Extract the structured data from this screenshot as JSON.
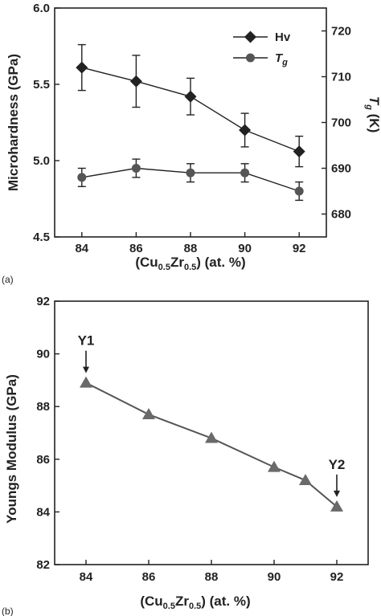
{
  "chart_data": [
    {
      "panel": "(a)",
      "type": "line",
      "x": [
        84,
        86,
        88,
        90,
        92
      ],
      "xlabel_parts": [
        "(Cu",
        "0.5",
        "Zr",
        "0.5",
        ") (at. %)"
      ],
      "ylabel": "Microhardness (GPa)",
      "ylim": [
        4.5,
        6.0
      ],
      "yticks": [
        "4.5",
        "5.0",
        "5.5",
        "6.0"
      ],
      "y2label": "T",
      "y2label_sub": "g",
      "y2label_unit": " (K)",
      "y2lim": [
        675,
        725
      ],
      "y2ticks": [
        "680",
        "690",
        "700",
        "710",
        "720"
      ],
      "xticks": [
        "84",
        "86",
        "88",
        "90",
        "92"
      ],
      "series": [
        {
          "name": "Hv",
          "axis": "left",
          "marker": "diamond",
          "values": [
            5.61,
            5.52,
            5.42,
            5.2,
            5.06
          ],
          "errors": [
            0.15,
            0.17,
            0.12,
            0.11,
            0.1
          ]
        },
        {
          "name": "T",
          "name_sub": "g",
          "axis": "right",
          "marker": "circle",
          "values": [
            688,
            690,
            689,
            689,
            685
          ],
          "errors": [
            2,
            2,
            2,
            2,
            2
          ]
        }
      ],
      "legend_position": "top-right",
      "grid": false
    },
    {
      "panel": "(b)",
      "type": "line",
      "x": [
        84,
        86,
        88,
        90,
        91,
        92
      ],
      "values": [
        88.9,
        87.7,
        86.8,
        85.7,
        85.2,
        84.2
      ],
      "marker": "triangle",
      "xlabel_parts": [
        "(Cu",
        "0.5",
        "Zr",
        "0.5",
        ") (at. %)"
      ],
      "ylabel": "Youngs Modulus (GPa)",
      "ylim": [
        82,
        92
      ],
      "yticks": [
        "82",
        "84",
        "86",
        "88",
        "90",
        "92"
      ],
      "xticks": [
        "84",
        "86",
        "88",
        "90",
        "92"
      ],
      "annotations": [
        {
          "text": "Y1",
          "x": 84,
          "y": 88.9
        },
        {
          "text": "Y2",
          "x": 92,
          "y": 84.2
        }
      ],
      "grid": false
    }
  ],
  "colors": {
    "axis": "#222222",
    "hv_marker": "#222222",
    "tg_marker": "#555555",
    "b_line": "#555555",
    "b_marker": "#6a6a6a"
  }
}
